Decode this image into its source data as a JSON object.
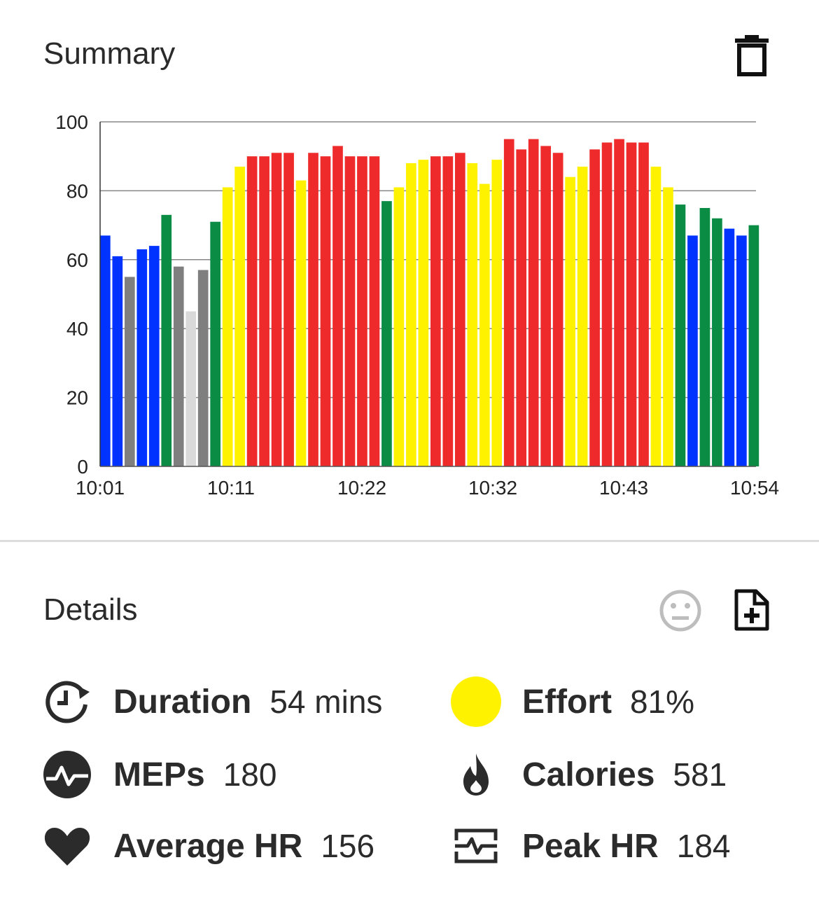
{
  "summary": {
    "title": "Summary",
    "delete_icon": "trash-icon"
  },
  "details": {
    "title": "Details",
    "mood_icon": "neutral-face-icon",
    "add_icon": "add-file-icon"
  },
  "stats": {
    "duration": {
      "label": "Duration",
      "value": "54 mins",
      "icon": "clock-refresh-icon"
    },
    "effort": {
      "label": "Effort",
      "value": "81%",
      "icon": "yellow-dot-icon",
      "color": "#fff200"
    },
    "meps": {
      "label": "MEPs",
      "value": "180",
      "icon": "pulse-circle-icon"
    },
    "calories": {
      "label": "Calories",
      "value": "581",
      "icon": "flame-icon"
    },
    "avg_hr": {
      "label": "Average HR",
      "value": "156",
      "icon": "heart-icon"
    },
    "peak_hr": {
      "label": "Peak HR",
      "value": "184",
      "icon": "heart-rate-box-icon"
    }
  },
  "chart_data": {
    "type": "bar",
    "ylim": [
      0,
      100
    ],
    "y_ticks": [
      "0",
      "20",
      "40",
      "60",
      "80",
      "100"
    ],
    "x_tick_labels": [
      "10:01",
      "10:11",
      "10:22",
      "10:32",
      "10:43",
      "10:54"
    ],
    "grid": true,
    "zone_colors": {
      "light_gray": "#d9d9d9",
      "gray": "#7f7f7f",
      "blue": "#0033ff",
      "green": "#0a8c45",
      "yellow": "#fff200",
      "red": "#ee2a2a"
    },
    "values": [
      67,
      61,
      55,
      63,
      64,
      73,
      58,
      45,
      57,
      71,
      81,
      87,
      90,
      90,
      91,
      91,
      83,
      91,
      90,
      93,
      90,
      90,
      90,
      77,
      81,
      88,
      89,
      90,
      90,
      91,
      88,
      82,
      89,
      95,
      92,
      95,
      93,
      91,
      84,
      87,
      92,
      94,
      95,
      94,
      94,
      87,
      81,
      76,
      67,
      75,
      72,
      69,
      67,
      70
    ],
    "zones": [
      "blue",
      "blue",
      "gray",
      "blue",
      "blue",
      "green",
      "gray",
      "light_gray",
      "gray",
      "green",
      "yellow",
      "yellow",
      "red",
      "red",
      "red",
      "red",
      "yellow",
      "red",
      "red",
      "red",
      "red",
      "red",
      "red",
      "green",
      "yellow",
      "yellow",
      "yellow",
      "red",
      "red",
      "red",
      "yellow",
      "yellow",
      "yellow",
      "red",
      "red",
      "red",
      "red",
      "red",
      "yellow",
      "yellow",
      "red",
      "red",
      "red",
      "red",
      "red",
      "yellow",
      "yellow",
      "green",
      "blue",
      "green",
      "green",
      "blue",
      "blue",
      "green"
    ]
  }
}
